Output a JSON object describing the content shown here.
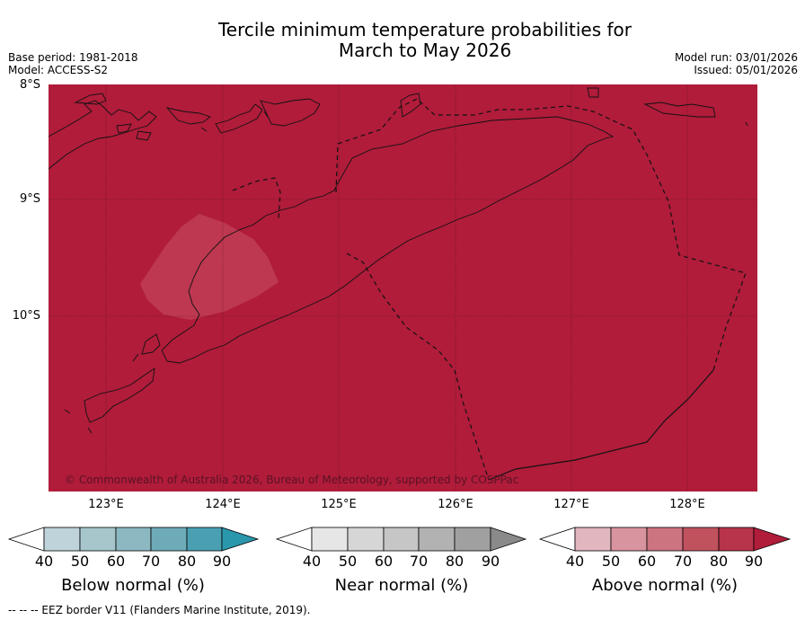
{
  "title": {
    "line1": "Tercile minimum temperature probabilities for",
    "line2": "March to May 2026"
  },
  "meta": {
    "base_period": "Base period: 1981-2018",
    "model": "Model: ACCESS-S2",
    "model_run": "Model run: 03/01/2026",
    "issued": "Issued: 05/01/2026"
  },
  "map": {
    "lat_labels": [
      "8°S",
      "9°S",
      "10°S"
    ],
    "lon_labels": [
      "123°E",
      "124°E",
      "125°E",
      "126°E",
      "127°E",
      "128°E"
    ],
    "copyright": "© Commonwealth of Australia 2026, Bureau of Meteorology, supported by COSPPac",
    "colors": {
      "fill": "#b01c3a",
      "patch": "#bd3850"
    }
  },
  "legends": [
    {
      "label": "Below normal (%)",
      "ticks": [
        "40",
        "50",
        "60",
        "70",
        "80",
        "90"
      ],
      "colors": [
        "#ffffff",
        "#bed3da",
        "#a6c6cc",
        "#8cb8c2",
        "#6eabb8",
        "#4aa0b2",
        "#2b97ad"
      ]
    },
    {
      "label": "Near normal (%)",
      "ticks": [
        "40",
        "50",
        "60",
        "70",
        "80",
        "90"
      ],
      "colors": [
        "#ffffff",
        "#e6e6e6",
        "#d6d6d6",
        "#c6c6c6",
        "#b2b2b2",
        "#a0a0a0",
        "#8a8a8a"
      ]
    },
    {
      "label": "Above normal (%)",
      "ticks": [
        "40",
        "50",
        "60",
        "70",
        "80",
        "90"
      ],
      "colors": [
        "#ffffff",
        "#e2b6be",
        "#d8949f",
        "#cc7480",
        "#c0525e",
        "#b8344a",
        "#b01c3a"
      ]
    }
  ],
  "footer": "--  --  -- EEZ border V11 (Flanders Marine Institute, 2019)."
}
